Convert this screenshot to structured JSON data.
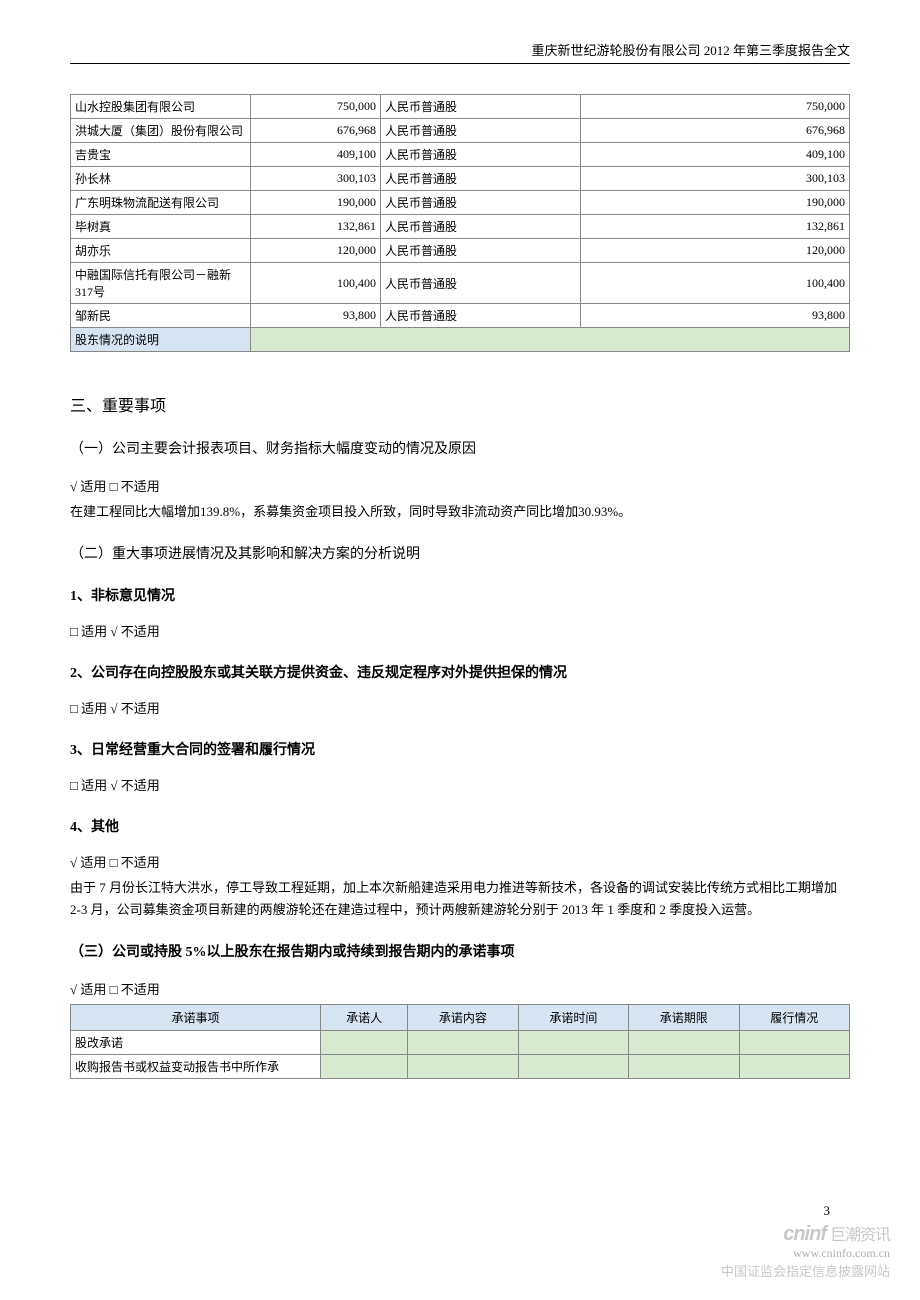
{
  "header": "重庆新世纪游轮股份有限公司 2012 年第三季度报告全文",
  "shareholders": [
    {
      "name": "山水控股集团有限公司",
      "amount1": "750,000",
      "type": "人民币普通股",
      "amount2": "750,000"
    },
    {
      "name": "洪城大厦（集团）股份有限公司",
      "amount1": "676,968",
      "type": "人民币普通股",
      "amount2": "676,968"
    },
    {
      "name": "吉贵宝",
      "amount1": "409,100",
      "type": "人民币普通股",
      "amount2": "409,100"
    },
    {
      "name": "孙长林",
      "amount1": "300,103",
      "type": "人民币普通股",
      "amount2": "300,103"
    },
    {
      "name": "广东明珠物流配送有限公司",
      "amount1": "190,000",
      "type": "人民币普通股",
      "amount2": "190,000"
    },
    {
      "name": "毕树真",
      "amount1": "132,861",
      "type": "人民币普通股",
      "amount2": "132,861"
    },
    {
      "name": "胡亦乐",
      "amount1": "120,000",
      "type": "人民币普通股",
      "amount2": "120,000"
    },
    {
      "name": "中融国际信托有限公司－融新317号",
      "amount1": "100,400",
      "type": "人民币普通股",
      "amount2": "100,400"
    },
    {
      "name": "邹新民",
      "amount1": "93,800",
      "type": "人民币普通股",
      "amount2": "93,800"
    }
  ],
  "shareholder_note_label": "股东情况的说明",
  "section3_title": "三、重要事项",
  "sub1_title": "（一）公司主要会计报表项目、财务指标大幅度变动的情况及原因",
  "sub1_applicable": "√ 适用 □ 不适用",
  "sub1_text": "在建工程同比大幅增加139.8%，系募集资金项目投入所致，同时导致非流动资产同比增加30.93%。",
  "sub2_title": "（二）重大事项进展情况及其影响和解决方案的分析说明",
  "item1_title": "1、非标意见情况",
  "item1_applicable": "□ 适用 √ 不适用",
  "item2_title": "2、公司存在向控股股东或其关联方提供资金、违反规定程序对外提供担保的情况",
  "item2_applicable": "□ 适用 √ 不适用",
  "item3_title": "3、日常经营重大合同的签署和履行情况",
  "item3_applicable": "□ 适用 √ 不适用",
  "item4_title": "4、其他",
  "item4_applicable": "√ 适用 □ 不适用",
  "item4_text": "由于 7 月份长江特大洪水，停工导致工程延期，加上本次新船建造采用电力推进等新技术，各设备的调试安装比传统方式相比工期增加 2-3 月，公司募集资金项目新建的两艘游轮还在建造过程中，预计两艘新建游轮分别于 2013 年 1 季度和 2 季度投入运营。",
  "sub3_title": "（三）公司或持股 5%以上股东在报告期内或持续到报告期内的承诺事项",
  "sub3_applicable": "√ 适用 □ 不适用",
  "commitment_headers": [
    "承诺事项",
    "承诺人",
    "承诺内容",
    "承诺时间",
    "承诺期限",
    "履行情况"
  ],
  "commitment_rows": [
    "股改承诺",
    "收购报告书或权益变动报告书中所作承"
  ],
  "page_number": "3",
  "logo_text": "cninf",
  "logo_cn": "巨潮资讯",
  "url": "www.cninfo.com.cn",
  "disclosure": "中国证监会指定信息披露网站"
}
